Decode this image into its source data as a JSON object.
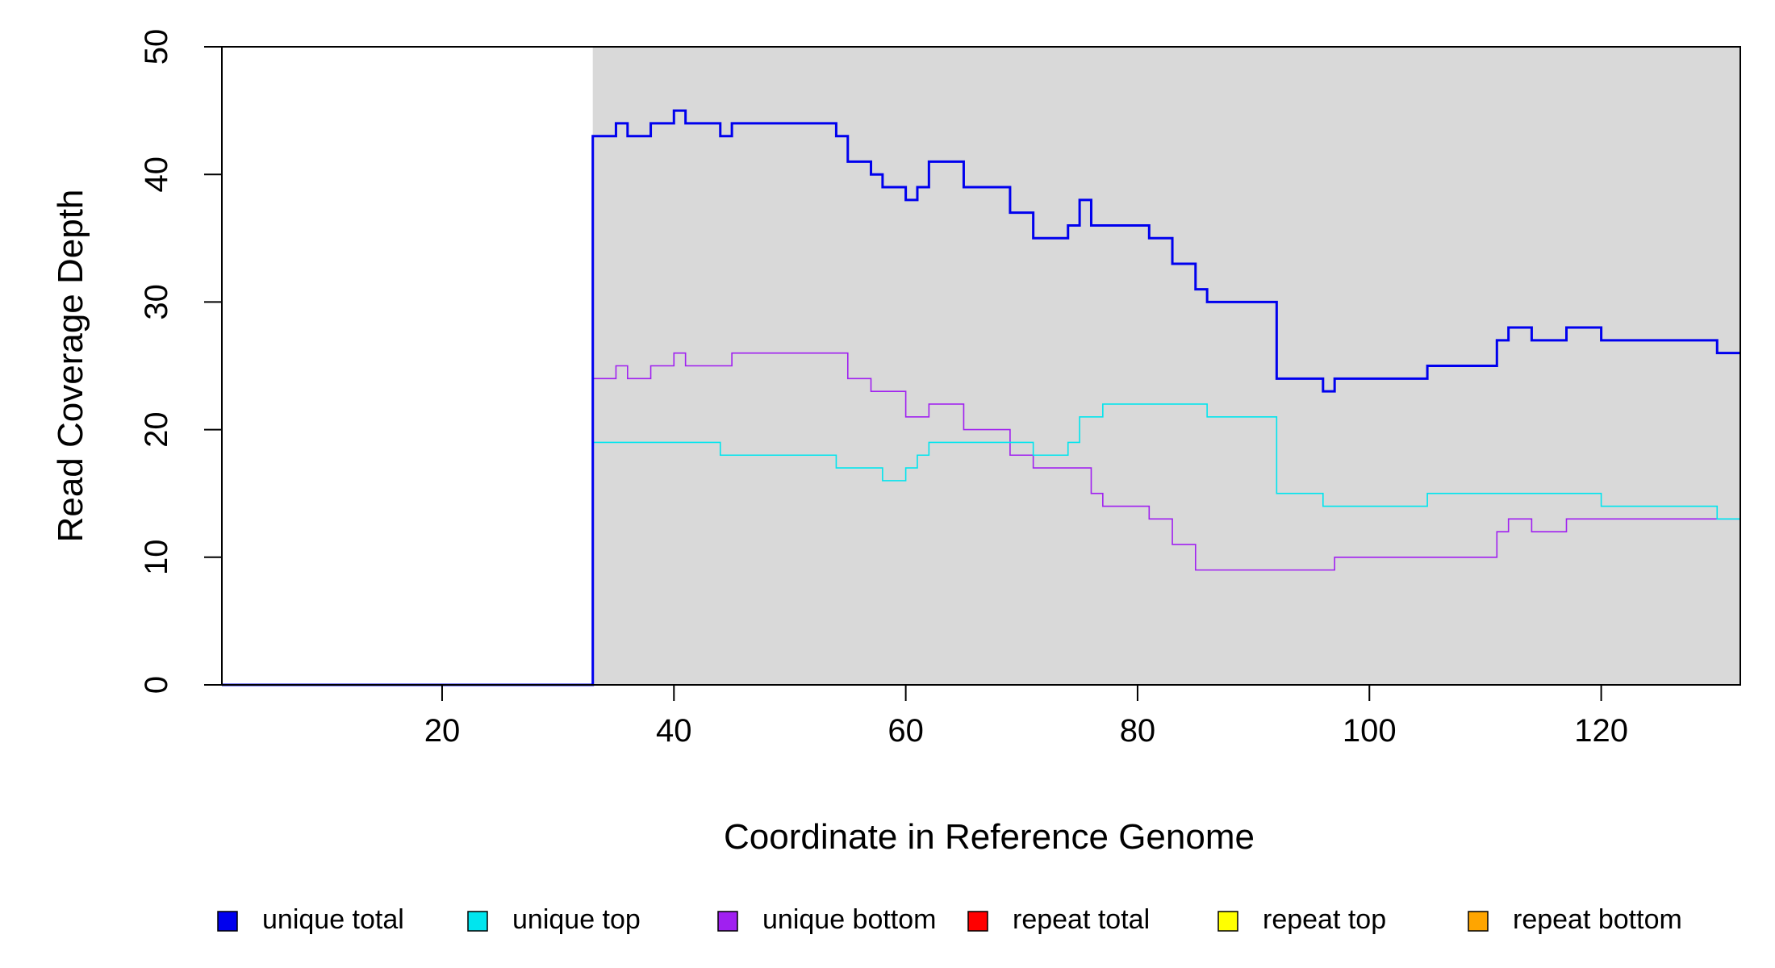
{
  "chart_data": {
    "type": "line",
    "step": true,
    "xlabel": "Coordinate in Reference Genome",
    "ylabel": "Read Coverage Depth",
    "xlim": [
      1,
      132
    ],
    "ylim": [
      0,
      50
    ],
    "x_ticks": [
      20,
      40,
      60,
      80,
      100,
      120
    ],
    "y_ticks": [
      0,
      10,
      20,
      30,
      40,
      50
    ],
    "highlight_region": {
      "x_start": 33,
      "x_end": 132,
      "color": "#d9d9d9"
    },
    "legend_position": "bottom",
    "series": [
      {
        "name": "unique total",
        "color": "#0000ee",
        "points": [
          [
            1,
            0
          ],
          [
            33,
            43
          ],
          [
            35,
            44
          ],
          [
            36,
            43
          ],
          [
            38,
            44
          ],
          [
            40,
            45
          ],
          [
            41,
            44
          ],
          [
            44,
            43
          ],
          [
            45,
            44
          ],
          [
            54,
            43
          ],
          [
            55,
            41
          ],
          [
            57,
            40
          ],
          [
            58,
            39
          ],
          [
            60,
            38
          ],
          [
            61,
            39
          ],
          [
            62,
            41
          ],
          [
            65,
            39
          ],
          [
            69,
            37
          ],
          [
            71,
            35
          ],
          [
            74,
            36
          ],
          [
            75,
            38
          ],
          [
            76,
            36
          ],
          [
            81,
            35
          ],
          [
            83,
            33
          ],
          [
            85,
            31
          ],
          [
            86,
            30
          ],
          [
            92,
            24
          ],
          [
            96,
            23
          ],
          [
            97,
            24
          ],
          [
            105,
            25
          ],
          [
            111,
            27
          ],
          [
            112,
            28
          ],
          [
            114,
            27
          ],
          [
            117,
            28
          ],
          [
            120,
            27
          ],
          [
            130,
            26
          ],
          [
            132,
            26
          ]
        ]
      },
      {
        "name": "unique top",
        "color": "#00e5ee",
        "points": [
          [
            1,
            0
          ],
          [
            33,
            19
          ],
          [
            44,
            18
          ],
          [
            54,
            17
          ],
          [
            58,
            16
          ],
          [
            60,
            17
          ],
          [
            61,
            18
          ],
          [
            62,
            19
          ],
          [
            71,
            18
          ],
          [
            74,
            19
          ],
          [
            75,
            21
          ],
          [
            77,
            22
          ],
          [
            86,
            21
          ],
          [
            92,
            15
          ],
          [
            96,
            14
          ],
          [
            105,
            15
          ],
          [
            120,
            14
          ],
          [
            130,
            13
          ],
          [
            132,
            13
          ]
        ]
      },
      {
        "name": "unique bottom",
        "color": "#a020f0",
        "points": [
          [
            1,
            0
          ],
          [
            33,
            24
          ],
          [
            35,
            25
          ],
          [
            36,
            24
          ],
          [
            38,
            25
          ],
          [
            40,
            26
          ],
          [
            41,
            25
          ],
          [
            45,
            26
          ],
          [
            55,
            24
          ],
          [
            57,
            23
          ],
          [
            60,
            21
          ],
          [
            62,
            22
          ],
          [
            65,
            20
          ],
          [
            69,
            18
          ],
          [
            71,
            17
          ],
          [
            76,
            15
          ],
          [
            77,
            14
          ],
          [
            81,
            13
          ],
          [
            83,
            11
          ],
          [
            85,
            9
          ],
          [
            97,
            10
          ],
          [
            111,
            12
          ],
          [
            112,
            13
          ],
          [
            114,
            12
          ],
          [
            117,
            13
          ],
          [
            132,
            13
          ]
        ]
      },
      {
        "name": "repeat total",
        "color": "#ff0000",
        "points": [
          [
            1,
            0
          ],
          [
            132,
            0
          ]
        ]
      },
      {
        "name": "repeat top",
        "color": "#ffff00",
        "points": [
          [
            1,
            0
          ],
          [
            132,
            0
          ]
        ]
      },
      {
        "name": "repeat bottom",
        "color": "#ffa500",
        "points": [
          [
            1,
            0
          ],
          [
            132,
            0
          ]
        ]
      }
    ]
  }
}
